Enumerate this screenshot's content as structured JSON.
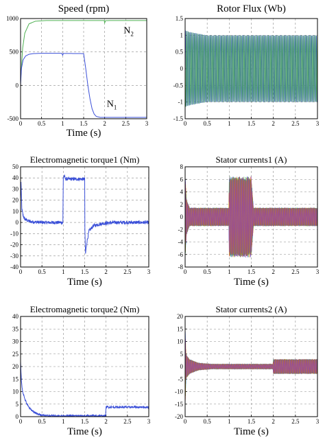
{
  "figure": {
    "colors": {
      "blue": "#3a4fd8",
      "green": "#4caf50",
      "grid": "#8a8a8a",
      "axis": "#000000",
      "multi": [
        "#2a3cff",
        "#17a2b8",
        "#3cb043",
        "#c0392b",
        "#e0a800",
        "#8e44ad"
      ]
    }
  },
  "chart_data": [
    {
      "id": "speed",
      "type": "line",
      "title": "Speed (rpm)",
      "xlabel": "Time (s)",
      "ylabel": "",
      "xlim": [
        0,
        3
      ],
      "ylim": [
        -500,
        1000
      ],
      "xticks": [
        "0",
        "0.5",
        "1",
        "1.5",
        "2",
        "2.5",
        "3"
      ],
      "yticks": [
        "-500",
        "0",
        "500",
        "1000"
      ],
      "grid": true,
      "annotations": [
        {
          "text": "N",
          "sub": "2",
          "near_x": 2.45,
          "near_y": 780
        },
        {
          "text": "N",
          "sub": "1",
          "near_x": 2.05,
          "near_y": -320
        }
      ],
      "series": [
        {
          "color_key": "green",
          "x": [
            0,
            0.05,
            0.1,
            0.2,
            0.35,
            0.6,
            1.0,
            1.5,
            1.99,
            2.0,
            2.02,
            2.1,
            2.5,
            3.0
          ],
          "y": [
            60,
            560,
            780,
            920,
            960,
            970,
            970,
            970,
            970,
            935,
            968,
            970,
            970,
            970
          ]
        },
        {
          "color_key": "blue",
          "x": [
            0,
            0.02,
            0.06,
            0.12,
            0.2,
            0.3,
            0.5,
            0.98,
            1.0,
            1.02,
            1.5,
            1.55,
            1.6,
            1.65,
            1.7,
            1.75,
            1.8,
            1.9,
            2.0,
            3.0
          ],
          "y": [
            0,
            250,
            380,
            440,
            465,
            475,
            480,
            480,
            450,
            478,
            475,
            250,
            0,
            -200,
            -350,
            -430,
            -465,
            -480,
            -480,
            -480
          ]
        }
      ]
    },
    {
      "id": "rotor-flux",
      "type": "line",
      "title": "Rotor Flux (Wb)",
      "xlabel": "",
      "ylabel": "",
      "xlim": [
        0,
        3
      ],
      "ylim": [
        -1.5,
        1.5
      ],
      "xticks": [
        "0",
        "0.5",
        "1",
        "1.5",
        "2",
        "2.5",
        "3"
      ],
      "yticks": [
        "-1.5",
        "-1",
        "-0.5",
        "0",
        "0.5",
        "1",
        "1.5"
      ],
      "grid": true,
      "envelope": {
        "x": [
          0,
          0.1,
          0.5,
          1.0,
          1.5,
          1.55,
          2.0,
          3.0
        ],
        "amp": [
          1.15,
          1.1,
          1.0,
          1.0,
          1.0,
          1.0,
          1.0,
          1.0
        ]
      },
      "series": [
        {
          "color_key": "blue",
          "kind": "oscillation",
          "cycles_per_s": 28
        },
        {
          "color_key": "green",
          "kind": "oscillation",
          "cycles_per_s": 28,
          "phase": 2.1
        }
      ]
    },
    {
      "id": "torque1",
      "type": "line",
      "title": "Electromagnetic torque1 (Nm)",
      "xlabel": "Time (s)",
      "ylabel": "",
      "xlim": [
        0,
        3
      ],
      "ylim": [
        -40,
        50
      ],
      "xticks": [
        "0",
        "0.5",
        "1",
        "1.5",
        "2",
        "2.5",
        "3"
      ],
      "yticks": [
        "-40",
        "-30",
        "-20",
        "-10",
        "0",
        "10",
        "20",
        "30",
        "40",
        "50"
      ],
      "grid": true,
      "series": [
        {
          "color_key": "blue",
          "x": [
            0,
            0.01,
            0.03,
            0.06,
            0.1,
            0.2,
            0.3,
            0.5,
            0.99,
            1.0,
            1.02,
            1.05,
            1.5,
            1.5,
            1.52,
            1.55,
            1.6,
            1.7,
            1.9,
            2.2,
            3.0
          ],
          "y": [
            20,
            36,
            12,
            6,
            3,
            1,
            0.5,
            0,
            0,
            40,
            42,
            39,
            39,
            0,
            -28,
            -18,
            -8,
            -3,
            -1,
            0,
            0
          ],
          "noise": 1.5
        }
      ]
    },
    {
      "id": "stator1",
      "type": "line",
      "title": "Stator currents1 (A)",
      "xlabel": "Time (s)",
      "ylabel": "",
      "xlim": [
        0,
        3
      ],
      "ylim": [
        -8,
        8
      ],
      "xticks": [
        "0",
        "0.5",
        "1",
        "1.5",
        "2",
        "2.5",
        "3"
      ],
      "yticks": [
        "-8",
        "-6",
        "-4",
        "-2",
        "0",
        "2",
        "4",
        "6",
        "8"
      ],
      "grid": true,
      "envelope": {
        "x": [
          0,
          0.03,
          0.1,
          0.99,
          1.0,
          1.5,
          1.55,
          3.0
        ],
        "amp": [
          7,
          3,
          1.5,
          1.5,
          6.5,
          6.5,
          1.5,
          1.5
        ]
      },
      "series": [
        {
          "color_key": "multi",
          "kind": "multiphase",
          "phases": 6,
          "cycles_per_s": 45
        }
      ]
    },
    {
      "id": "torque2",
      "type": "line",
      "title": "Electromagnetic torque2 (Nm)",
      "xlabel": "Time (s)",
      "ylabel": "",
      "xlim": [
        0,
        3
      ],
      "ylim": [
        0,
        40
      ],
      "xticks": [
        "0",
        "0.5",
        "1",
        "1.5",
        "2",
        "2.5",
        "3"
      ],
      "yticks": [
        "0",
        "5",
        "10",
        "15",
        "20",
        "25",
        "30",
        "35",
        "40"
      ],
      "grid": true,
      "series": [
        {
          "color_key": "blue",
          "x": [
            0,
            0.02,
            0.05,
            0.1,
            0.15,
            0.2,
            0.3,
            0.4,
            0.6,
            1.0,
            1.99,
            2.0,
            2.05,
            3.0
          ],
          "y": [
            22,
            14,
            10,
            7,
            5,
            3.5,
            2,
            1,
            0.4,
            0.3,
            0.3,
            4,
            3.8,
            3.8
          ],
          "noise": 0.4
        }
      ]
    },
    {
      "id": "stator2",
      "type": "line",
      "title": "Stator currents2 (A)",
      "xlabel": "Time (s)",
      "ylabel": "",
      "xlim": [
        0,
        3
      ],
      "ylim": [
        -20,
        20
      ],
      "xticks": [
        "0",
        "0.5",
        "1",
        "1.5",
        "2",
        "2.5",
        "3"
      ],
      "yticks": [
        "-20",
        "-15",
        "-10",
        "-5",
        "0",
        "5",
        "10",
        "15",
        "20"
      ],
      "grid": true,
      "envelope": {
        "x": [
          0,
          0.02,
          0.1,
          0.3,
          0.6,
          1.99,
          2.0,
          3.0
        ],
        "amp": [
          18,
          5,
          3,
          1.5,
          1,
          1,
          3,
          3
        ]
      },
      "series": [
        {
          "color_key": "multi",
          "kind": "multiphase",
          "phases": 6,
          "cycles_per_s": 45
        }
      ]
    }
  ]
}
